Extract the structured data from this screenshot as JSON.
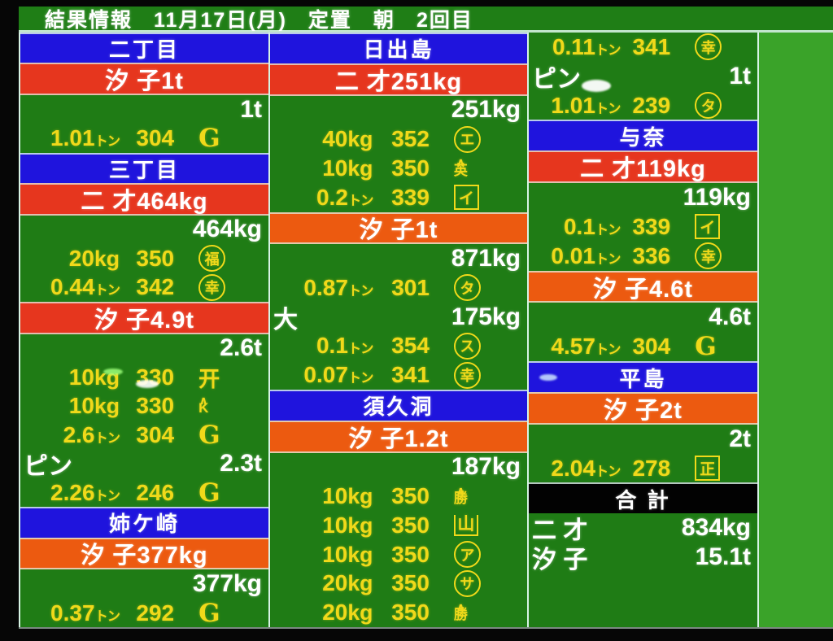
{
  "header": {
    "title": "結果情報",
    "date": "11月17日(月)",
    "fishing_type": "定置",
    "time_of_day": "朝",
    "round": "2回目"
  },
  "colors": {
    "field_green": "#1f7c15",
    "bright_green": "#3aa329",
    "header_blue": "#1f14dd",
    "band_red": "#e6361e",
    "band_orange": "#ec5a10",
    "text_yellow": "#f0d91a",
    "line_white": "#d6f3e4",
    "total_black": "#020202"
  },
  "columns": [
    {
      "rows": [
        {
          "t": "head",
          "style": "blue",
          "label": "二丁目"
        },
        {
          "t": "band",
          "tone": "red",
          "label": "汐 子1t"
        },
        {
          "t": "wr",
          "right": "1t"
        },
        {
          "t": "sale",
          "qty": "1.01",
          "unit": "トン",
          "price": "304",
          "mark": {
            "shape": "g",
            "char": "G"
          }
        },
        {
          "t": "head",
          "style": "blue",
          "label": "三丁目"
        },
        {
          "t": "band",
          "tone": "red",
          "label": "二 才464kg"
        },
        {
          "t": "wr",
          "right": "464kg"
        },
        {
          "t": "sale",
          "qty": "20",
          "unit": "kg",
          "price": "350",
          "mark": {
            "shape": "circle",
            "char": "福"
          }
        },
        {
          "t": "sale",
          "qty": "0.44",
          "unit": "トン",
          "price": "342",
          "mark": {
            "shape": "circle",
            "char": "幸"
          }
        },
        {
          "t": "band",
          "tone": "red",
          "label": "汐 子4.9t"
        },
        {
          "t": "wr",
          "right": "2.6t"
        },
        {
          "t": "sale",
          "qty": "10",
          "unit": "kg",
          "price": "330",
          "mark": {
            "shape": "plain",
            "char": "开"
          }
        },
        {
          "t": "sale",
          "qty": "10",
          "unit": "kg",
          "price": "330",
          "mark": {
            "shape": "roof",
            "char": "K"
          }
        },
        {
          "t": "sale",
          "qty": "2.6",
          "unit": "トン",
          "price": "304",
          "mark": {
            "shape": "g",
            "char": "G"
          }
        },
        {
          "t": "wlr",
          "left": "ピン",
          "right": "2.3t"
        },
        {
          "t": "sale",
          "qty": "2.26",
          "unit": "トン",
          "price": "246",
          "mark": {
            "shape": "g",
            "char": "G"
          }
        },
        {
          "t": "head",
          "style": "blue",
          "label": "姉ケ崎"
        },
        {
          "t": "band",
          "tone": "orange",
          "label": "汐 子377kg"
        },
        {
          "t": "wr",
          "right": "377kg"
        },
        {
          "t": "sale",
          "qty": "0.37",
          "unit": "トン",
          "price": "292",
          "mark": {
            "shape": "g",
            "char": "G"
          }
        }
      ]
    },
    {
      "rows": [
        {
          "t": "head",
          "style": "blue",
          "label": "日出島"
        },
        {
          "t": "band",
          "tone": "red",
          "label": "二 才251kg"
        },
        {
          "t": "wr",
          "right": "251kg"
        },
        {
          "t": "sale",
          "qty": "40",
          "unit": "kg",
          "price": "352",
          "mark": {
            "shape": "circle",
            "char": "エ"
          }
        },
        {
          "t": "sale",
          "qty": "10",
          "unit": "kg",
          "price": "350",
          "mark": {
            "shape": "roof",
            "char": "英"
          }
        },
        {
          "t": "sale",
          "qty": "0.2",
          "unit": "トン",
          "price": "339",
          "mark": {
            "shape": "box",
            "char": "イ"
          }
        },
        {
          "t": "band",
          "tone": "orange",
          "label": "汐 子1t"
        },
        {
          "t": "wr",
          "right": "871kg"
        },
        {
          "t": "sale",
          "qty": "0.87",
          "unit": "トン",
          "price": "301",
          "mark": {
            "shape": "circle",
            "char": "タ"
          }
        },
        {
          "t": "wlr",
          "left": "大",
          "right": "175kg"
        },
        {
          "t": "sale",
          "qty": "0.1",
          "unit": "トン",
          "price": "354",
          "mark": {
            "shape": "circle",
            "char": "ス"
          }
        },
        {
          "t": "sale",
          "qty": "0.07",
          "unit": "トン",
          "price": "341",
          "mark": {
            "shape": "circle",
            "char": "幸"
          }
        },
        {
          "t": "head",
          "style": "blue",
          "label": "須久洞"
        },
        {
          "t": "band",
          "tone": "orange",
          "label": "汐 子1.2t"
        },
        {
          "t": "wr",
          "right": "187kg"
        },
        {
          "t": "sale",
          "qty": "10",
          "unit": "kg",
          "price": "350",
          "mark": {
            "shape": "roof",
            "char": "勝"
          }
        },
        {
          "t": "sale",
          "qty": "10",
          "unit": "kg",
          "price": "350",
          "mark": {
            "shape": "openbox",
            "char": "山"
          }
        },
        {
          "t": "sale",
          "qty": "10",
          "unit": "kg",
          "price": "350",
          "mark": {
            "shape": "circle",
            "char": "ア"
          }
        },
        {
          "t": "sale",
          "qty": "20",
          "unit": "kg",
          "price": "350",
          "mark": {
            "shape": "circle",
            "char": "サ"
          }
        },
        {
          "t": "sale",
          "qty": "20",
          "unit": "kg",
          "price": "350",
          "mark": {
            "shape": "roof",
            "char": "勝"
          }
        }
      ]
    },
    {
      "rows": [
        {
          "t": "sale",
          "qty": "0.11",
          "unit": "トン",
          "price": "341",
          "mark": {
            "shape": "circle",
            "char": "幸"
          }
        },
        {
          "t": "wlr",
          "left": "ピン",
          "right": "1t"
        },
        {
          "t": "sale",
          "qty": "1.01",
          "unit": "トン",
          "price": "239",
          "mark": {
            "shape": "circle",
            "char": "タ"
          }
        },
        {
          "t": "head",
          "style": "blue",
          "label": "与奈"
        },
        {
          "t": "band",
          "tone": "red",
          "label": "二 才119kg"
        },
        {
          "t": "wr",
          "right": "119kg"
        },
        {
          "t": "sale",
          "qty": "0.1",
          "unit": "トン",
          "price": "339",
          "mark": {
            "shape": "box",
            "char": "イ"
          }
        },
        {
          "t": "sale",
          "qty": "0.01",
          "unit": "トン",
          "price": "336",
          "mark": {
            "shape": "circle",
            "char": "幸"
          }
        },
        {
          "t": "band",
          "tone": "orange",
          "label": "汐 子4.6t"
        },
        {
          "t": "wr",
          "right": "4.6t"
        },
        {
          "t": "sale",
          "qty": "4.57",
          "unit": "トン",
          "price": "304",
          "mark": {
            "shape": "g",
            "char": "G"
          }
        },
        {
          "t": "head",
          "style": "blue",
          "label": "平島"
        },
        {
          "t": "band",
          "tone": "orange",
          "label": "汐 子2t"
        },
        {
          "t": "wr",
          "right": "2t"
        },
        {
          "t": "sale",
          "qty": "2.04",
          "unit": "トン",
          "price": "278",
          "mark": {
            "shape": "box",
            "char": "正"
          }
        },
        {
          "t": "head",
          "style": "black",
          "label": "合 計"
        },
        {
          "t": "wlr",
          "left": "二 才",
          "right": "834kg"
        },
        {
          "t": "wlr",
          "left": "汐 子",
          "right": "15.1t"
        }
      ]
    }
  ]
}
